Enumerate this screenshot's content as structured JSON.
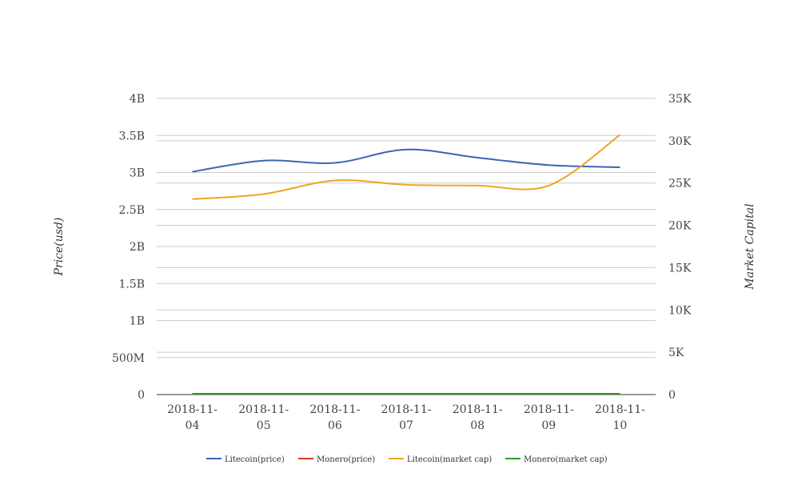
{
  "chart_data": {
    "type": "line",
    "categories": [
      "2018-11-04",
      "2018-11-05",
      "2018-11-06",
      "2018-11-07",
      "2018-11-08",
      "2018-11-09",
      "2018-11-10"
    ],
    "category_lines": [
      [
        "2018-11-",
        "04"
      ],
      [
        "2018-11-",
        "05"
      ],
      [
        "2018-11-",
        "06"
      ],
      [
        "2018-11-",
        "07"
      ],
      [
        "2018-11-",
        "08"
      ],
      [
        "2018-11-",
        "09"
      ],
      [
        "2018-11-",
        "10"
      ]
    ],
    "y_left": {
      "label": "Price(usd)",
      "range": [
        0,
        4000000000
      ],
      "ticks": [
        0,
        500000000,
        1000000000,
        1500000000,
        2000000000,
        2500000000,
        3000000000,
        3500000000,
        4000000000
      ],
      "tick_labels": [
        "0",
        "500M",
        "1B",
        "1.5B",
        "2B",
        "2.5B",
        "3B",
        "3.5B",
        "4B"
      ]
    },
    "y_right": {
      "label": "Market Capital",
      "range": [
        0,
        35000
      ],
      "ticks": [
        0,
        5000,
        10000,
        15000,
        20000,
        25000,
        30000,
        35000
      ],
      "tick_labels": [
        "0",
        "5K",
        "10K",
        "15K",
        "20K",
        "25K",
        "30K",
        "35K"
      ]
    },
    "series": [
      {
        "name": "Litecoin(price)",
        "color": "#3b65b5",
        "axis": "left",
        "values": [
          3010000000,
          3160000000,
          3130000000,
          3310000000,
          3200000000,
          3100000000,
          3070000000
        ]
      },
      {
        "name": "Monero(price)",
        "color": "#d23a1f",
        "axis": "left",
        "values": [
          10000000,
          10000000,
          10000000,
          10000000,
          10000000,
          10000000,
          10000000
        ]
      },
      {
        "name": "Litecoin(market cap)",
        "color": "#f0a323",
        "axis": "right",
        "values": [
          23100,
          23700,
          25300,
          24800,
          24700,
          24700,
          30700
        ]
      },
      {
        "name": "Monero(market cap)",
        "color": "#2a9a2a",
        "axis": "right",
        "values": [
          100,
          100,
          100,
          100,
          100,
          100,
          100
        ]
      }
    ],
    "legend_position": "bottom",
    "grid": true
  }
}
